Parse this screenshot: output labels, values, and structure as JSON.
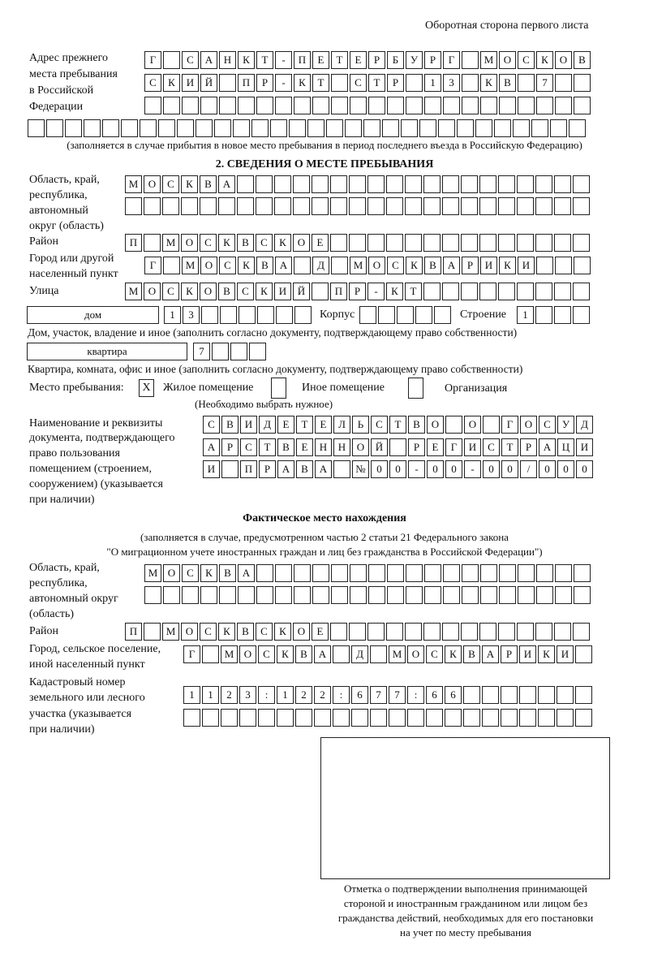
{
  "page_header": "Оборотная сторона первого листа",
  "prev_address": {
    "label": [
      "Адрес прежнего",
      "места пребывания",
      "в Российской",
      "Федерации"
    ],
    "lines": [
      "Г САНКТ-ПЕТЕРБУРГ МОСКОВ",
      "СКИЙ ПР-КТ СТР 13 КВ 7",
      "",
      ""
    ],
    "note": "(заполняется в случае прибытия в новое место пребывания в период последнего въезда в Российскую Федерацию)"
  },
  "section2": {
    "title": "2. СВЕДЕНИЯ О МЕСТЕ ПРЕБЫВАНИЯ",
    "region_label": [
      "Область, край,",
      "республика,",
      "автономный",
      "округ (область)"
    ],
    "region_lines": [
      "МОСКВА",
      ""
    ],
    "district_label": "Район",
    "district": "П МОСКВСКОЕ",
    "city_label": [
      "Город или другой",
      "населенный пункт"
    ],
    "city": "Г МОСКВА Д МОСКВАРИКИ",
    "street_label": "Улица",
    "street": "МОСКОВСКИЙ ПР-КТ",
    "house_type": "дом",
    "house_number": "13",
    "korpus_label": "Корпус",
    "korpus": "",
    "stroenie_label": "Строение",
    "stroenie": "1",
    "house_note": "Дом, участок, владение и иное (заполнить согласно документу, подтверждающему право собственности)",
    "flat_type": "квартира",
    "flat_number": "7",
    "flat_note": "Квартира, комната, офис и иное (заполнить согласно документу, подтверждающему право собственности)",
    "place_label": "Место пребывания:",
    "place_options": [
      {
        "label": "Жилое помещение",
        "mark": "X",
        "checked": true
      },
      {
        "label": "Иное помещение",
        "mark": "",
        "checked": false
      },
      {
        "label": "Организация",
        "mark": "",
        "checked": false
      }
    ],
    "place_note": "(Необходимо выбрать нужное)",
    "doc_label": [
      "Наименование и реквизиты",
      "документа, подтверждающего",
      "право пользования",
      "помещением (строением,",
      "сооружением) (указывается",
      "при наличии)"
    ],
    "doc_lines": [
      "СВИДЕТЕЛЬСТВО О ГОСУД",
      "АРСТВЕННОЙ РЕГИСТРАЦИ",
      "И ПРАВА №00-00-00/000"
    ]
  },
  "actual": {
    "title": "Фактическое место нахождения",
    "note": [
      "(заполняется в случае, предусмотренном частью 2 статьи 21 Федерального закона",
      "\"О миграционном учете иностранных граждан и лиц без гражданства в Российской Федерации\")"
    ],
    "region_label": [
      "Область, край,",
      "республика,",
      "автономный округ",
      "(область)"
    ],
    "region_lines": [
      "МОСКВА",
      ""
    ],
    "district_label": "Район",
    "district": "П МОСКВСКОЕ",
    "city_label": [
      "Город, сельское поселение,",
      "иной населенный пункт"
    ],
    "city": "Г МОСКВА Д МОСКВАРИКИ",
    "cadastral_label": [
      "Кадастровый номер",
      "земельного или лесного",
      "участка (указывается",
      "при наличии)"
    ],
    "cadastral_lines": [
      "1123:122:677:66",
      ""
    ]
  },
  "confirmation": {
    "caption": [
      "Отметка о подтверждении выполнения принимающей",
      "стороной и иностранным гражданином или лицом без",
      "гражданства действий, необходимых для его постановки",
      "на учет по месту пребывания"
    ]
  }
}
